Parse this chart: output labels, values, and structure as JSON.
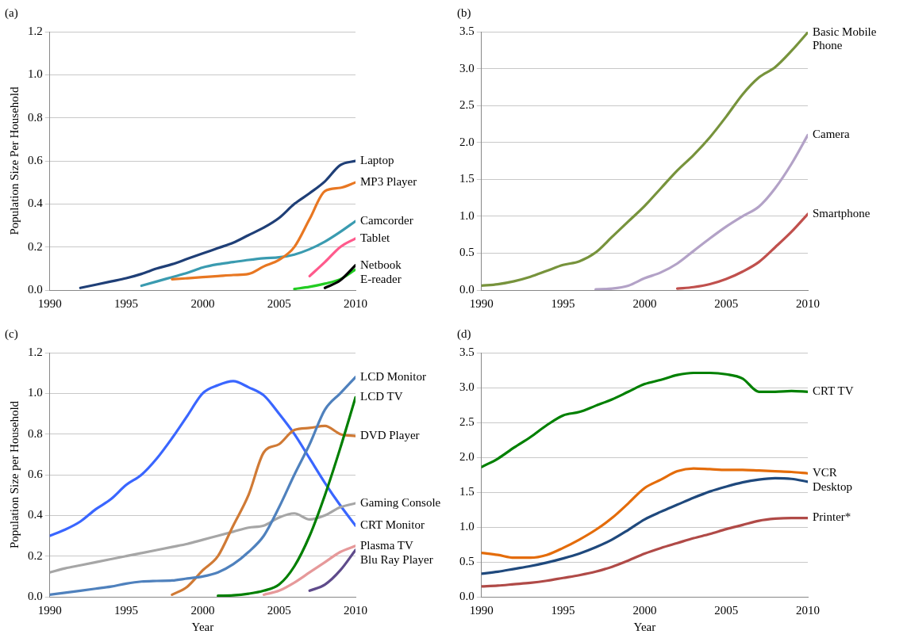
{
  "chart_data": [
    {
      "type": "line",
      "title": "(a)",
      "ylabel": "Population Size Per Household",
      "grid": "y",
      "xlim": [
        1990,
        2010
      ],
      "xticks": [
        1990,
        1995,
        2000,
        2005,
        2010
      ],
      "ylim": [
        0,
        1.2
      ],
      "yticks": [
        {
          "value": 0,
          "label": "0.0"
        },
        0.2,
        0.4,
        0.6,
        0.8,
        {
          "value": 1,
          "label": "1.0"
        },
        1.2
      ],
      "series": [
        {
          "name": "Laptop",
          "color": "#1f3f77",
          "x": [
            1992,
            1993,
            1994,
            1995,
            1996,
            1997,
            1998,
            1999,
            2000,
            2001,
            2002,
            2003,
            2004,
            2005,
            2006,
            2007,
            2008,
            2009,
            2010
          ],
          "values": [
            0.01,
            0.025,
            0.04,
            0.055,
            0.075,
            0.1,
            0.12,
            0.145,
            0.17,
            0.195,
            0.22,
            0.255,
            0.29,
            0.335,
            0.4,
            0.45,
            0.505,
            0.58,
            0.6
          ]
        },
        {
          "name": "MP3 Player",
          "color": "#e87722",
          "x": [
            1998,
            1999,
            2000,
            2001,
            2002,
            2003,
            2004,
            2005,
            2006,
            2007,
            2008,
            2009,
            2010
          ],
          "values": [
            0.05,
            0.055,
            0.06,
            0.065,
            0.07,
            0.075,
            0.11,
            0.14,
            0.2,
            0.33,
            0.46,
            0.475,
            0.5
          ]
        },
        {
          "name": "Camcorder",
          "color": "#3a9bb0",
          "x": [
            1996,
            1997,
            1998,
            1999,
            2000,
            2001,
            2002,
            2003,
            2004,
            2005,
            2006,
            2007,
            2008,
            2009,
            2010
          ],
          "values": [
            0.02,
            0.04,
            0.06,
            0.08,
            0.105,
            0.12,
            0.13,
            0.14,
            0.148,
            0.152,
            0.165,
            0.19,
            0.225,
            0.27,
            0.32
          ]
        },
        {
          "name": "Tablet",
          "color": "#ff5a8c",
          "x": [
            2007,
            2008,
            2009,
            2010
          ],
          "values": [
            0.065,
            0.13,
            0.2,
            0.24
          ]
        },
        {
          "name": "Netbook",
          "color": "#000000",
          "x": [
            2008,
            2009,
            2010
          ],
          "values": [
            0.01,
            0.045,
            0.115
          ]
        },
        {
          "name": "E-reader",
          "color": "#22cc22",
          "x": [
            2006,
            2007,
            2008,
            2009,
            2010
          ],
          "values": [
            0.005,
            0.015,
            0.03,
            0.05,
            0.095
          ]
        }
      ]
    },
    {
      "type": "line",
      "title": "(b)",
      "grid": "y",
      "xlim": [
        1990,
        2010
      ],
      "xticks": [
        1990,
        1995,
        2000,
        2005,
        2010
      ],
      "ylim": [
        0,
        3.5
      ],
      "yticks": [
        {
          "value": 0,
          "label": "0.0"
        },
        0.5,
        {
          "value": 1,
          "label": "1.0"
        },
        1.5,
        {
          "value": 2,
          "label": "2.0"
        },
        2.5,
        {
          "value": 3,
          "label": "3.0"
        },
        3.5
      ],
      "series": [
        {
          "name": "Basic Mobile Phone",
          "color": "#77933c",
          "x": [
            1990,
            1991,
            1992,
            1993,
            1994,
            1995,
            1996,
            1997,
            1998,
            1999,
            2000,
            2001,
            2002,
            2003,
            2004,
            2005,
            2006,
            2007,
            2008,
            2009,
            2010
          ],
          "values": [
            0.06,
            0.08,
            0.12,
            0.18,
            0.26,
            0.34,
            0.39,
            0.51,
            0.72,
            0.93,
            1.14,
            1.38,
            1.62,
            1.83,
            2.07,
            2.35,
            2.65,
            2.88,
            3.02,
            3.24,
            3.49
          ]
        },
        {
          "name": "Camera",
          "color": "#b3a2c7",
          "x": [
            1997,
            1998,
            1999,
            2000,
            2001,
            2002,
            2003,
            2004,
            2005,
            2006,
            2007,
            2008,
            2009,
            2010
          ],
          "values": [
            0.01,
            0.02,
            0.06,
            0.16,
            0.24,
            0.36,
            0.53,
            0.7,
            0.86,
            1.0,
            1.13,
            1.38,
            1.71,
            2.1
          ]
        },
        {
          "name": "Smartphone",
          "color": "#c0504d",
          "x": [
            2002,
            2003,
            2004,
            2005,
            2006,
            2007,
            2008,
            2009,
            2010
          ],
          "values": [
            0.02,
            0.04,
            0.08,
            0.15,
            0.25,
            0.38,
            0.58,
            0.79,
            1.03
          ]
        }
      ]
    },
    {
      "type": "line",
      "title": "(c)",
      "xlabel": "Year",
      "ylabel": "Population Size per Household",
      "grid": "y",
      "xlim": [
        1990,
        2010
      ],
      "xticks": [
        1990,
        1995,
        2000,
        2005,
        2010
      ],
      "ylim": [
        0,
        1.2
      ],
      "yticks": [
        {
          "value": 0,
          "label": "0.0"
        },
        0.2,
        0.4,
        0.6,
        0.8,
        {
          "value": 1,
          "label": "1.0"
        },
        1.2
      ],
      "series": [
        {
          "name": "LCD Monitor",
          "color": "#4f81bd",
          "x": [
            1990,
            1991,
            1992,
            1993,
            1994,
            1995,
            1996,
            1997,
            1998,
            1999,
            2000,
            2001,
            2002,
            2003,
            2004,
            2005,
            2006,
            2007,
            2008,
            2009,
            2010
          ],
          "values": [
            0.01,
            0.02,
            0.03,
            0.04,
            0.05,
            0.065,
            0.075,
            0.078,
            0.08,
            0.09,
            0.1,
            0.12,
            0.16,
            0.22,
            0.3,
            0.44,
            0.6,
            0.75,
            0.92,
            1.0,
            1.08
          ]
        },
        {
          "name": "LCD TV",
          "color": "#007f00",
          "x": [
            2001,
            2002,
            2003,
            2004,
            2005,
            2006,
            2007,
            2008,
            2009,
            2010
          ],
          "values": [
            0.005,
            0.007,
            0.015,
            0.03,
            0.06,
            0.15,
            0.3,
            0.5,
            0.73,
            0.98
          ]
        },
        {
          "name": "DVD Player",
          "color": "#d07a35",
          "x": [
            1998,
            1999,
            2000,
            2001,
            2002,
            2003,
            2004,
            2005,
            2006,
            2007,
            2008,
            2009,
            2010
          ],
          "values": [
            0.01,
            0.05,
            0.13,
            0.2,
            0.35,
            0.5,
            0.71,
            0.75,
            0.82,
            0.83,
            0.84,
            0.8,
            0.79
          ]
        },
        {
          "name": "Gaming Console",
          "color": "#a6a6a6",
          "x": [
            1990,
            1991,
            1992,
            1993,
            1994,
            1995,
            1996,
            1997,
            1998,
            1999,
            2000,
            2001,
            2002,
            2003,
            2004,
            2005,
            2006,
            2007,
            2008,
            2009,
            2010
          ],
          "values": [
            0.12,
            0.14,
            0.155,
            0.17,
            0.185,
            0.2,
            0.215,
            0.23,
            0.245,
            0.26,
            0.28,
            0.3,
            0.32,
            0.34,
            0.35,
            0.39,
            0.41,
            0.38,
            0.4,
            0.44,
            0.46
          ]
        },
        {
          "name": "CRT Monitor",
          "color": "#3a66ff",
          "x": [
            1990,
            1991,
            1992,
            1993,
            1994,
            1995,
            1996,
            1997,
            1998,
            1999,
            2000,
            2001,
            2002,
            2003,
            2004,
            2005,
            2006,
            2007,
            2008,
            2009,
            2010
          ],
          "values": [
            0.3,
            0.33,
            0.37,
            0.43,
            0.48,
            0.55,
            0.6,
            0.68,
            0.78,
            0.89,
            1.0,
            1.04,
            1.06,
            1.03,
            0.99,
            0.9,
            0.8,
            0.68,
            0.56,
            0.45,
            0.35
          ]
        },
        {
          "name": "Plasma TV",
          "color": "#e6999a",
          "x": [
            2004,
            2005,
            2006,
            2007,
            2008,
            2009,
            2010
          ],
          "values": [
            0.01,
            0.03,
            0.07,
            0.12,
            0.17,
            0.22,
            0.25
          ]
        },
        {
          "name": "Blu Ray Player",
          "color": "#5f4b8b",
          "x": [
            2007,
            2008,
            2009,
            2010
          ],
          "values": [
            0.03,
            0.06,
            0.13,
            0.23
          ]
        }
      ]
    },
    {
      "type": "line",
      "title": "(d)",
      "xlabel": "Year",
      "grid": "y",
      "xlim": [
        1990,
        2010
      ],
      "xticks": [
        1990,
        1995,
        2000,
        2005,
        2010
      ],
      "ylim": [
        0,
        3.5
      ],
      "yticks": [
        {
          "value": 0,
          "label": "0.0"
        },
        0.5,
        {
          "value": 1,
          "label": "1.0"
        },
        1.5,
        {
          "value": 2,
          "label": "2.0"
        },
        2.5,
        {
          "value": 3,
          "label": "3.0"
        },
        3.5
      ],
      "series": [
        {
          "name": "CRT TV",
          "color": "#008000",
          "x": [
            1990,
            1991,
            1992,
            1993,
            1994,
            1995,
            1996,
            1997,
            1998,
            1999,
            2000,
            2001,
            2002,
            2003,
            2004,
            2005,
            2006,
            2007,
            2008,
            2009,
            2010
          ],
          "values": [
            1.86,
            1.98,
            2.14,
            2.29,
            2.46,
            2.6,
            2.65,
            2.74,
            2.83,
            2.94,
            3.05,
            3.11,
            3.18,
            3.21,
            3.21,
            3.19,
            3.13,
            2.94,
            2.94,
            2.95,
            2.94
          ]
        },
        {
          "name": "VCR",
          "color": "#e46c0a",
          "x": [
            1990,
            1991,
            1992,
            1993,
            1994,
            1995,
            1996,
            1997,
            1998,
            1999,
            2000,
            2001,
            2002,
            2003,
            2004,
            2005,
            2006,
            2007,
            2008,
            2009,
            2010
          ],
          "values": [
            0.63,
            0.6,
            0.56,
            0.56,
            0.6,
            0.7,
            0.82,
            0.96,
            1.13,
            1.34,
            1.56,
            1.68,
            1.8,
            1.84,
            1.83,
            1.82,
            1.82,
            1.81,
            1.8,
            1.79,
            1.77
          ]
        },
        {
          "name": "Desktop",
          "color": "#1f497d",
          "x": [
            1990,
            1991,
            1992,
            1993,
            1994,
            1995,
            1996,
            1997,
            1998,
            1999,
            2000,
            2001,
            2002,
            2003,
            2004,
            2005,
            2006,
            2007,
            2008,
            2009,
            2010
          ],
          "values": [
            0.33,
            0.36,
            0.4,
            0.44,
            0.49,
            0.55,
            0.62,
            0.71,
            0.82,
            0.96,
            1.11,
            1.22,
            1.32,
            1.42,
            1.51,
            1.58,
            1.64,
            1.68,
            1.7,
            1.69,
            1.65
          ]
        },
        {
          "name": "Printer*",
          "color": "#b04a47",
          "x": [
            1990,
            1991,
            1992,
            1993,
            1994,
            1995,
            1996,
            1997,
            1998,
            1999,
            2000,
            2001,
            2002,
            2003,
            2004,
            2005,
            2006,
            2007,
            2008,
            2009,
            2010
          ],
          "values": [
            0.15,
            0.16,
            0.18,
            0.2,
            0.23,
            0.27,
            0.31,
            0.36,
            0.43,
            0.52,
            0.62,
            0.7,
            0.77,
            0.84,
            0.9,
            0.97,
            1.03,
            1.09,
            1.12,
            1.13,
            1.13
          ]
        }
      ]
    }
  ]
}
